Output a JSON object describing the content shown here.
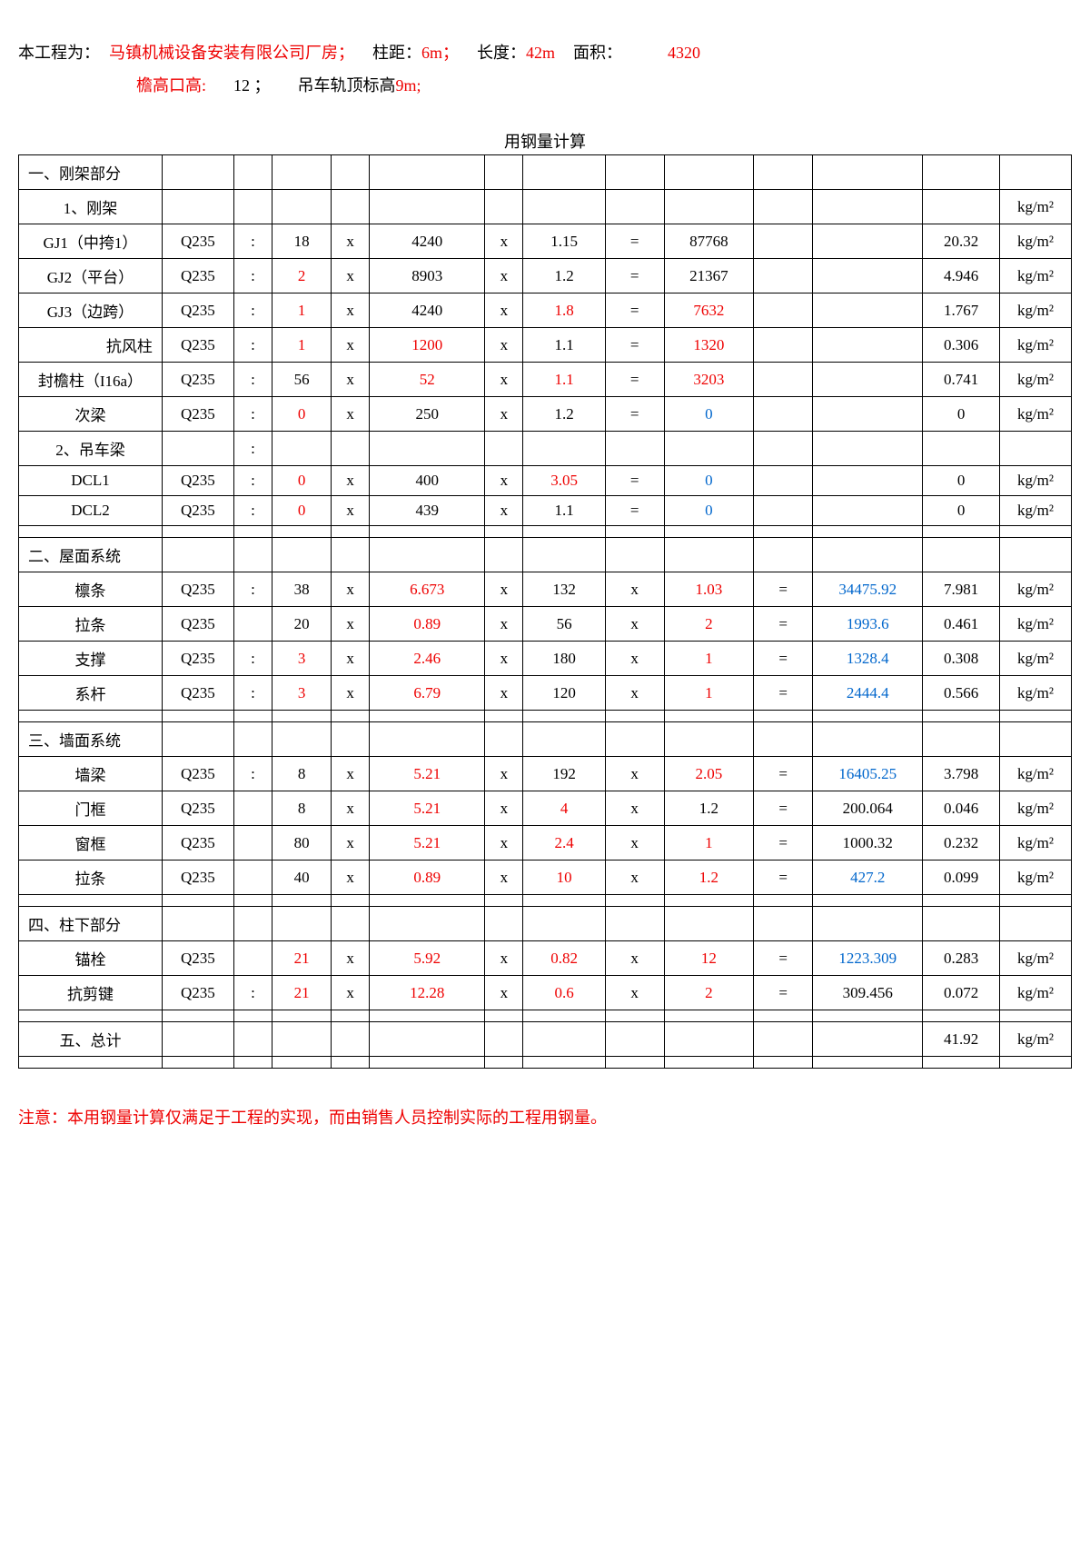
{
  "header": {
    "line1_prefix": "本工程为：",
    "project_name": "马镇机械设备安装有限公司厂房；",
    "col_spacing_label": "柱距：",
    "col_spacing_value": "6m；",
    "length_label": "长度：",
    "length_value": "42m",
    "area_label": "面积：",
    "area_value": "4320",
    "eave_label": "檐高口高:",
    "eave_value": "12 ；",
    "crane_label": "吊车轨顶标高",
    "crane_value": "9m;"
  },
  "table_title": "用钢量计算",
  "unit": "kg/m²",
  "section1": {
    "title": "一、刚架部分",
    "sub1": "1、刚架",
    "sub2": "2、吊车梁",
    "rows": [
      {
        "name": "GJ1（中挎1）",
        "mat": "Q235",
        "sep": ":",
        "a": "18",
        "xa": "x",
        "b": "4240",
        "br": false,
        "xb": "x",
        "c": "1.15",
        "cr": false,
        "eq": "=",
        "d": "87768",
        "dr": false,
        "e": "",
        "f": "",
        "g": "20.32"
      },
      {
        "name": "GJ2（平台）",
        "mat": "Q235",
        "sep": ":",
        "a": "2",
        "ar": true,
        "xa": "x",
        "b": "8903",
        "br": false,
        "xb": "x",
        "c": "1.2",
        "cr": false,
        "eq": "=",
        "d": "21367",
        "dr": false,
        "e": "",
        "f": "",
        "g": "4.946"
      },
      {
        "name": "GJ3（边跨）",
        "mat": "Q235",
        "sep": ":",
        "a": "1",
        "ar": true,
        "xa": "x",
        "b": "4240",
        "br": false,
        "xb": "x",
        "c": "1.8",
        "cr": true,
        "eq": "=",
        "d": "7632",
        "dr": true,
        "e": "",
        "f": "",
        "g": "1.767"
      },
      {
        "name": "抗风柱",
        "nameRight": true,
        "mat": "Q235",
        "sep": ":",
        "a": "1",
        "ar": true,
        "xa": "x",
        "b": "1200",
        "br": true,
        "xb": "x",
        "c": "1.1",
        "cr": false,
        "eq": "=",
        "d": "1320",
        "dr": true,
        "e": "",
        "f": "",
        "g": "0.306"
      },
      {
        "name": "封檐柱（I16a）",
        "mat": "Q235",
        "sep": ":",
        "a": "56",
        "xa": "x",
        "b": "52",
        "br": true,
        "xb": "x",
        "c": "1.1",
        "cr": true,
        "eq": "=",
        "d": "3203",
        "dr": true,
        "e": "",
        "f": "",
        "g": "0.741"
      },
      {
        "name": "次梁",
        "mat": "Q235",
        "sep": ":",
        "a": "0",
        "ar": true,
        "xa": "x",
        "b": "250",
        "br": false,
        "xb": "x",
        "c": "1.2",
        "cr": false,
        "eq": "=",
        "d": "0",
        "dr": false,
        "db": true,
        "e": "",
        "f": "",
        "g": "0"
      }
    ],
    "rows2": [
      {
        "name": "DCL1",
        "mat": "Q235",
        "sep": ":",
        "a": "0",
        "ar": true,
        "xa": "x",
        "b": "400",
        "br": false,
        "xb": "x",
        "c": "3.05",
        "cr": true,
        "eq": "=",
        "d": "0",
        "db": true,
        "e": "",
        "f": "",
        "g": "0"
      },
      {
        "name": "DCL2",
        "mat": "Q235",
        "sep": ":",
        "a": "0",
        "ar": true,
        "xa": "x",
        "b": "439",
        "br": false,
        "xb": "x",
        "c": "1.1",
        "cr": false,
        "eq": "=",
        "d": "0",
        "db": true,
        "e": "",
        "f": "",
        "g": "0"
      }
    ]
  },
  "section2": {
    "title": "二、屋面系统",
    "rows": [
      {
        "name": "檩条",
        "mat": "Q235",
        "sep": ":",
        "a": "38",
        "xa": "x",
        "b": "6.673",
        "br": true,
        "xb": "x",
        "c": "132",
        "eq": "x",
        "d": "1.03",
        "dr": true,
        "e": "=",
        "f": "34475.92",
        "fb": true,
        "g": "7.981"
      },
      {
        "name": "拉条",
        "mat": "Q235",
        "sep": "",
        "a": "20",
        "xa": "x",
        "b": "0.89",
        "br": true,
        "xb": "x",
        "c": "56",
        "eq": "x",
        "d": "2",
        "dr": true,
        "e": "=",
        "f": "1993.6",
        "fb": true,
        "g": "0.461"
      },
      {
        "name": "支撑",
        "mat": "Q235",
        "sep": ":",
        "a": "3",
        "ar": true,
        "xa": "x",
        "b": "2.46",
        "br": true,
        "xb": "x",
        "c": "180",
        "eq": "x",
        "d": "1",
        "dr": true,
        "e": "=",
        "f": "1328.4",
        "fb": true,
        "g": "0.308"
      },
      {
        "name": "系杆",
        "mat": "Q235",
        "sep": ":",
        "a": "3",
        "ar": true,
        "xa": "x",
        "b": "6.79",
        "br": true,
        "xb": "x",
        "c": "120",
        "eq": "x",
        "d": "1",
        "dr": true,
        "e": "=",
        "f": "2444.4",
        "fb": true,
        "g": "0.566"
      }
    ]
  },
  "section3": {
    "title": "三、墙面系统",
    "rows": [
      {
        "name": "墙梁",
        "mat": "Q235",
        "sep": ":",
        "a": "8",
        "xa": "x",
        "b": "5.21",
        "br": true,
        "xb": "x",
        "c": "192",
        "eq": "x",
        "d": "2.05",
        "dr": true,
        "e": "=",
        "f": "16405.25",
        "fb": true,
        "g": "3.798"
      },
      {
        "name": "门框",
        "mat": "Q235",
        "sep": "",
        "a": "8",
        "xa": "x",
        "b": "5.21",
        "br": true,
        "xb": "x",
        "c": "4",
        "cr": true,
        "eq": "x",
        "d": "1.2",
        "dr": false,
        "e": "=",
        "f": "200.064",
        "fb": false,
        "g": "0.046"
      },
      {
        "name": "窗框",
        "mat": "Q235",
        "sep": "",
        "a": "80",
        "xa": "x",
        "b": "5.21",
        "br": true,
        "xb": "x",
        "c": "2.4",
        "cr": true,
        "eq": "x",
        "d": "1",
        "dr": true,
        "e": "=",
        "f": "1000.32",
        "fb": false,
        "g": "0.232"
      },
      {
        "name": "拉条",
        "mat": "Q235",
        "sep": "",
        "a": "40",
        "xa": "x",
        "b": "0.89",
        "br": true,
        "xb": "x",
        "c": "10",
        "cr": true,
        "eq": "x",
        "d": "1.2",
        "dr": true,
        "e": "=",
        "f": "427.2",
        "fb": true,
        "g": "0.099"
      }
    ]
  },
  "section4": {
    "title": "四、柱下部分",
    "rows": [
      {
        "name": "锚栓",
        "mat": "Q235",
        "sep": "",
        "a": "21",
        "ar": true,
        "xa": "x",
        "b": "5.92",
        "br": true,
        "xb": "x",
        "c": "0.82",
        "cr": true,
        "eq": "x",
        "d": "12",
        "dr": true,
        "e": "=",
        "f": "1223.309",
        "fb": true,
        "g": "0.283"
      },
      {
        "name": "抗剪键",
        "mat": "Q235",
        "sep": ":",
        "a": "21",
        "ar": true,
        "xa": "x",
        "b": "12.28",
        "br": true,
        "xb": "x",
        "c": "0.6",
        "cr": true,
        "eq": "x",
        "d": "2",
        "dr": true,
        "e": "=",
        "f": "309.456",
        "fb": false,
        "g": "0.072"
      }
    ]
  },
  "section5": {
    "title": "五、总计",
    "total": "41.92"
  },
  "note": "注意：本用钢量计算仅满足于工程的实现，而由销售人员控制实际的工程用钢量。"
}
